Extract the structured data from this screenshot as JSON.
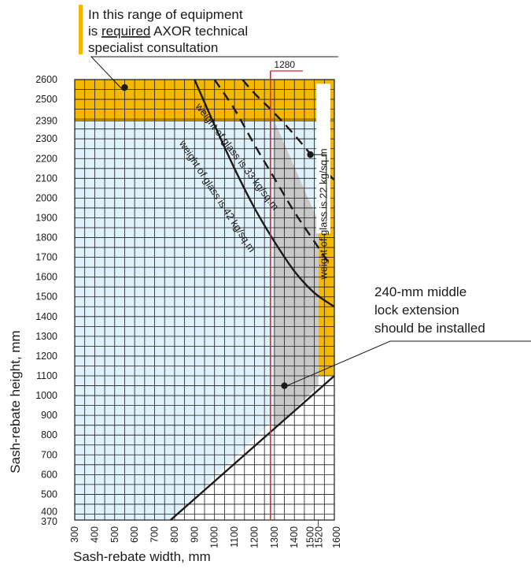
{
  "chart_data": {
    "type": "area",
    "title": "",
    "xlabel": "Sash-rebate width, mm",
    "ylabel": "Sash-rebate height, mm",
    "xlim": [
      300,
      1600
    ],
    "ylim": [
      370,
      2600
    ],
    "grid": true,
    "x_ticks": [
      300,
      400,
      500,
      600,
      700,
      800,
      900,
      1000,
      1100,
      1200,
      1300,
      1400,
      1500,
      1520,
      1600
    ],
    "y_ticks": [
      370,
      400,
      500,
      600,
      700,
      800,
      900,
      1000,
      1100,
      1200,
      1300,
      1400,
      1500,
      1600,
      1700,
      1800,
      1900,
      2000,
      2100,
      2200,
      2300,
      2390,
      2500,
      2600
    ],
    "colors": {
      "axor_zone": "#f5b800",
      "allowed_zone": "#dff1fa",
      "extension_zone": "#c8c8c8",
      "grid": "#1a1a1a",
      "reference_line": "#e0212b",
      "curve": "#1a1a1a"
    },
    "regions": [
      {
        "name": "axor_consultation",
        "label": [
          "In this range of equipment",
          "is ",
          "required",
          " AXOR technical",
          "specialist consultation"
        ],
        "points": [
          [
            300,
            2390
          ],
          [
            1520,
            2390
          ],
          [
            1520,
            1100
          ],
          [
            1600,
            1100
          ],
          [
            1600,
            2600
          ],
          [
            300,
            2600
          ]
        ]
      },
      {
        "name": "allowed",
        "points": [
          [
            300,
            370
          ],
          [
            780,
            370
          ],
          [
            1520,
            1100
          ],
          [
            1520,
            2390
          ],
          [
            300,
            2390
          ]
        ]
      },
      {
        "name": "middle_lock_extension",
        "label": [
          "240-mm middle",
          "lock extension",
          "should be installed"
        ],
        "points": [
          [
            1300,
            2390
          ],
          [
            1300,
            830
          ],
          [
            1520,
            1050
          ],
          [
            1520,
            1880
          ]
        ]
      }
    ],
    "series": [
      {
        "name": "weight of glass is 42 kg/sq.m",
        "style": "solid",
        "x": [
          900,
          1000,
          1100,
          1200,
          1300,
          1400,
          1500,
          1600
        ],
        "y": [
          2600,
          2370,
          2150,
          1950,
          1780,
          1630,
          1520,
          1450
        ]
      },
      {
        "name": "weight of glass is 33 kg/sq.m",
        "style": "dashed",
        "x": [
          1000,
          1100,
          1200,
          1300,
          1400,
          1500,
          1580
        ],
        "y": [
          2600,
          2450,
          2270,
          2100,
          1930,
          1780,
          1660
        ]
      },
      {
        "name": "weight of glass is 22 kg/sq.m",
        "style": "dashed",
        "x": [
          1140,
          1200,
          1300,
          1400,
          1500,
          1600
        ],
        "y": [
          2600,
          2530,
          2430,
          2320,
          2200,
          2090
        ]
      }
    ],
    "boundary_line": {
      "x": [
        780,
        1600
      ],
      "y": [
        370,
        1100
      ]
    },
    "reference_line": {
      "x": 1280,
      "label": "1280"
    },
    "markers": [
      {
        "x": 550,
        "y": 2560,
        "region": "axor_consultation"
      },
      {
        "x": 1480,
        "y": 2220,
        "region": "weight of glass is 22 kg/sq.m"
      },
      {
        "x": 1350,
        "y": 1050,
        "region": "middle_lock_extension"
      }
    ]
  }
}
